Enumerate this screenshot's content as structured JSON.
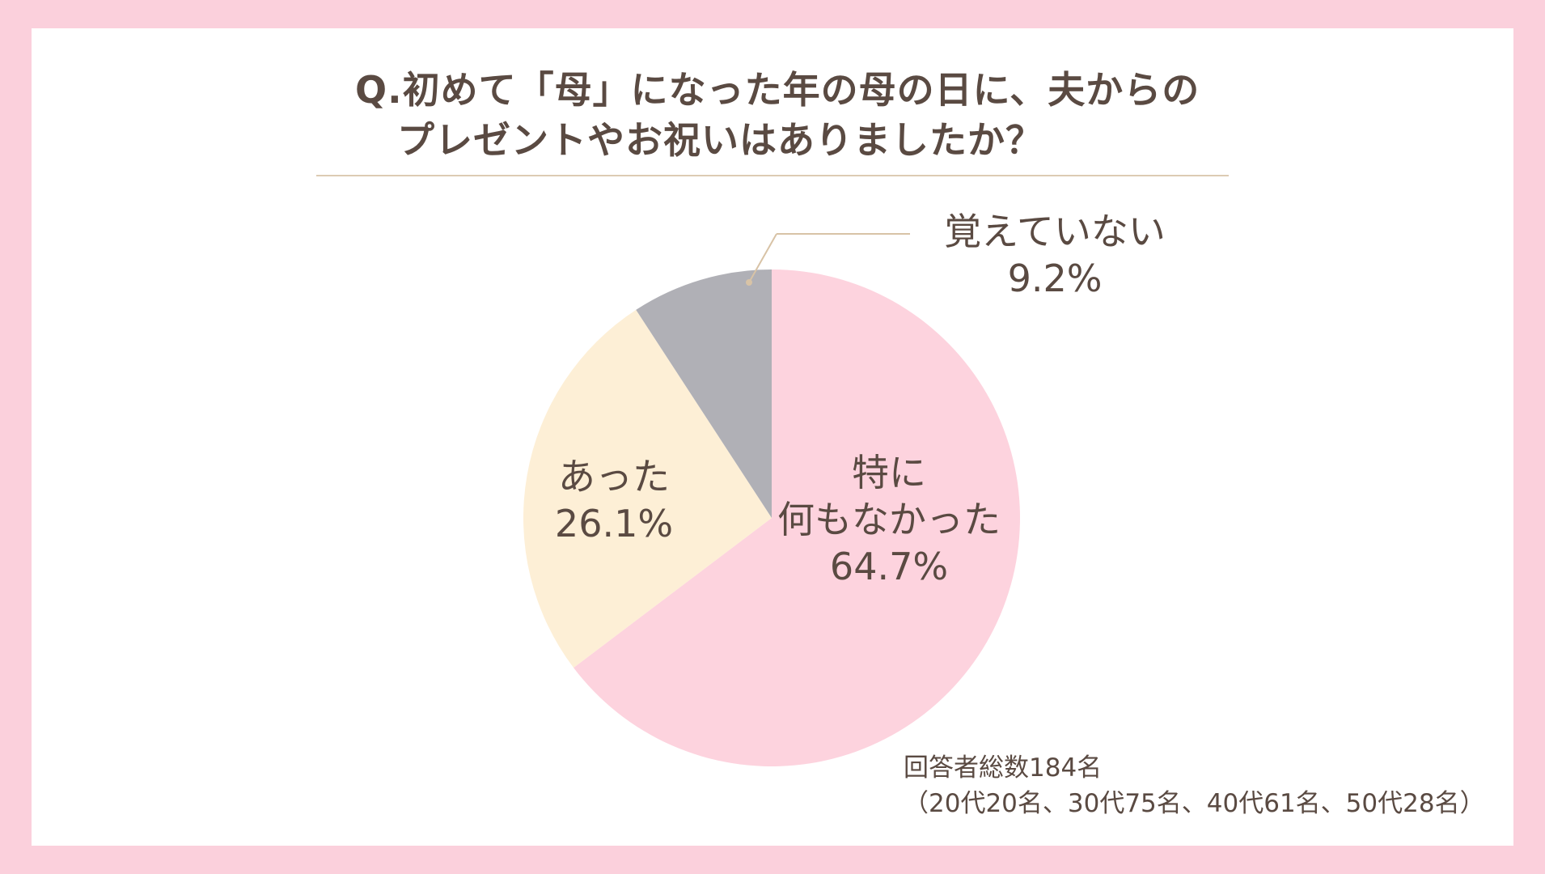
{
  "chart_data": {
    "type": "pie",
    "title_lines": [
      "Q.初めて「母」になった年の母の日に、夫からの",
      "プレゼントやお祝いはありましたか？"
    ],
    "slices": [
      {
        "label_lines": [
          "特に",
          "何もなかった"
        ],
        "value": 64.7,
        "value_label": "64.7%",
        "color": "#fdd3de"
      },
      {
        "label_lines": [
          "あった"
        ],
        "value": 26.1,
        "value_label": "26.1%",
        "color": "#fdefd6"
      },
      {
        "label_lines": [
          "覚えていない"
        ],
        "value": 9.2,
        "value_label": "9.2%",
        "color": "#b0b0b6"
      }
    ],
    "start_angle_deg": 0,
    "direction": "clockwise",
    "footnote": {
      "line1": "回答者総数184名",
      "line2": "（20代20名、30代75名、40代61名、50代28名）"
    },
    "colors": {
      "background": "#fbd0dc",
      "card": "#ffffff",
      "text": "#5a4a42",
      "rule": "#dccbb3",
      "leader": "#d8c3a6"
    }
  }
}
